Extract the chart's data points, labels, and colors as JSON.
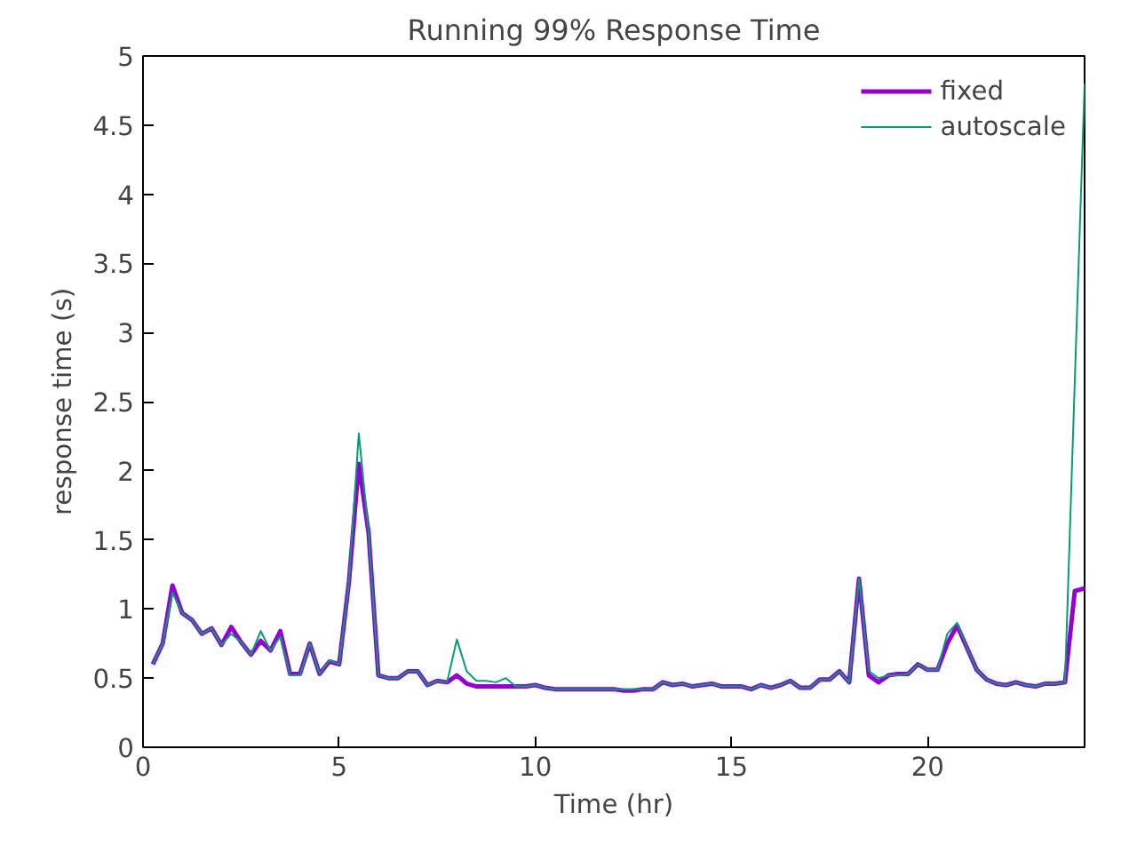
{
  "chart_data": {
    "type": "line",
    "title": "Running 99% Response Time",
    "xlabel": "Time (hr)",
    "ylabel": "response time (s)",
    "x": [
      0.25,
      0.5,
      0.75,
      1.0,
      1.25,
      1.5,
      1.75,
      2.0,
      2.25,
      2.5,
      2.75,
      3.0,
      3.25,
      3.5,
      3.75,
      4.0,
      4.25,
      4.5,
      4.75,
      5.0,
      5.25,
      5.5,
      5.75,
      6.0,
      6.25,
      6.5,
      6.75,
      7.0,
      7.25,
      7.5,
      7.75,
      8.0,
      8.25,
      8.5,
      8.75,
      9.0,
      9.25,
      9.5,
      9.75,
      10.0,
      10.25,
      10.5,
      10.75,
      11.0,
      11.25,
      11.5,
      11.75,
      12.0,
      12.25,
      12.5,
      12.75,
      13.0,
      13.25,
      13.5,
      13.75,
      14.0,
      14.25,
      14.5,
      14.75,
      15.0,
      15.25,
      15.5,
      15.75,
      16.0,
      16.25,
      16.5,
      16.75,
      17.0,
      17.25,
      17.5,
      17.75,
      18.0,
      18.25,
      18.5,
      18.75,
      19.0,
      19.25,
      19.5,
      19.75,
      20.0,
      20.25,
      20.5,
      20.75,
      21.0,
      21.25,
      21.5,
      21.75,
      22.0,
      22.25,
      22.5,
      22.75,
      23.0,
      23.25,
      23.5,
      23.75,
      24.0
    ],
    "series": [
      {
        "name": "fixed",
        "color": "#9400d3",
        "values": [
          0.6,
          0.75,
          1.17,
          0.97,
          0.92,
          0.82,
          0.86,
          0.74,
          0.87,
          0.76,
          0.67,
          0.77,
          0.7,
          0.84,
          0.53,
          0.53,
          0.75,
          0.53,
          0.62,
          0.6,
          1.2,
          2.05,
          1.55,
          0.52,
          0.5,
          0.5,
          0.55,
          0.55,
          0.45,
          0.48,
          0.47,
          0.52,
          0.46,
          0.44,
          0.44,
          0.44,
          0.44,
          0.44,
          0.44,
          0.45,
          0.43,
          0.42,
          0.42,
          0.42,
          0.42,
          0.42,
          0.42,
          0.42,
          0.41,
          0.41,
          0.42,
          0.42,
          0.47,
          0.45,
          0.46,
          0.44,
          0.45,
          0.46,
          0.44,
          0.44,
          0.44,
          0.42,
          0.45,
          0.43,
          0.45,
          0.48,
          0.43,
          0.43,
          0.49,
          0.49,
          0.55,
          0.47,
          1.22,
          0.52,
          0.47,
          0.52,
          0.53,
          0.53,
          0.6,
          0.56,
          0.56,
          0.75,
          0.88,
          0.72,
          0.56,
          0.49,
          0.46,
          0.45,
          0.47,
          0.45,
          0.44,
          0.46,
          0.46,
          0.47,
          1.13,
          1.15
        ]
      },
      {
        "name": "autoscale",
        "color": "#009e73",
        "values": [
          0.6,
          0.75,
          1.12,
          0.97,
          0.92,
          0.82,
          0.86,
          0.74,
          0.82,
          0.76,
          0.67,
          0.84,
          0.7,
          0.8,
          0.52,
          0.52,
          0.75,
          0.53,
          0.63,
          0.6,
          1.2,
          2.27,
          1.55,
          0.52,
          0.5,
          0.5,
          0.55,
          0.55,
          0.45,
          0.48,
          0.47,
          0.78,
          0.55,
          0.48,
          0.48,
          0.47,
          0.5,
          0.44,
          0.44,
          0.45,
          0.43,
          0.42,
          0.42,
          0.42,
          0.42,
          0.42,
          0.42,
          0.42,
          0.42,
          0.42,
          0.42,
          0.42,
          0.47,
          0.45,
          0.46,
          0.44,
          0.45,
          0.46,
          0.44,
          0.44,
          0.44,
          0.42,
          0.45,
          0.43,
          0.45,
          0.48,
          0.43,
          0.43,
          0.49,
          0.49,
          0.55,
          0.47,
          1.22,
          0.55,
          0.5,
          0.52,
          0.52,
          0.53,
          0.6,
          0.56,
          0.56,
          0.82,
          0.9,
          0.72,
          0.56,
          0.49,
          0.46,
          0.45,
          0.47,
          0.45,
          0.44,
          0.46,
          0.46,
          0.47,
          2.65,
          4.8
        ]
      }
    ],
    "xlim": [
      0,
      24
    ],
    "xticks": [
      0,
      5,
      10,
      15,
      20
    ],
    "ylim": [
      0,
      5
    ],
    "yticks": [
      0,
      0.5,
      1,
      1.5,
      2,
      2.5,
      3,
      3.5,
      4,
      4.5,
      5
    ],
    "grid": false,
    "legend": "top right"
  }
}
